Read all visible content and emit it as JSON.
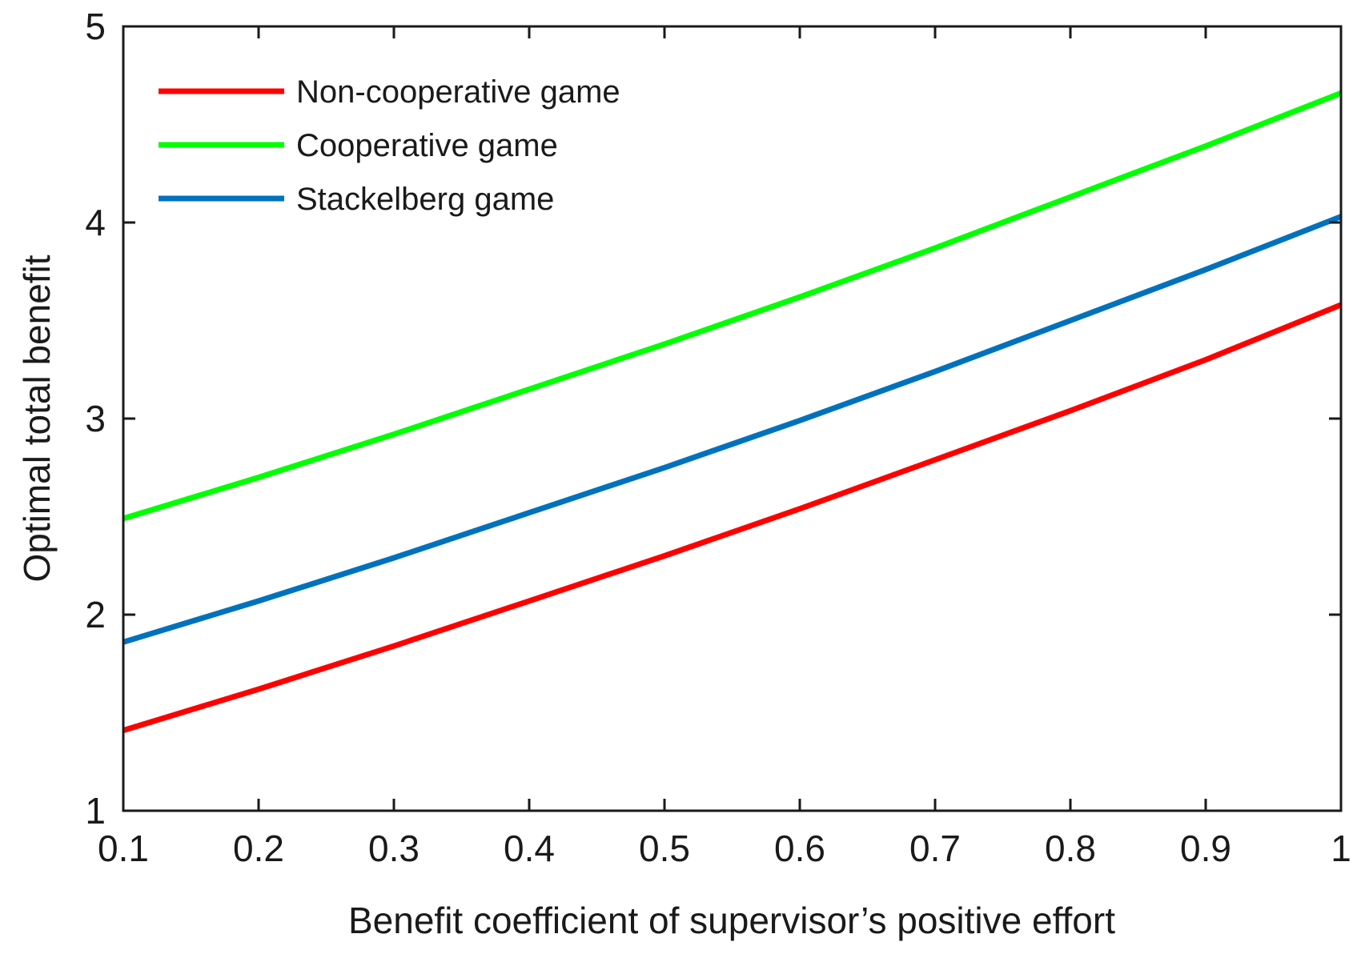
{
  "chart_data": {
    "type": "line",
    "title": "",
    "xlabel": "Benefit coefficient of supervisor’s positive effort",
    "ylabel": "Optimal total benefit",
    "xlim": [
      0.1,
      1
    ],
    "ylim": [
      1,
      5
    ],
    "xticks": [
      0.1,
      0.2,
      0.3,
      0.4,
      0.5,
      0.6,
      0.7,
      0.8,
      0.9,
      1
    ],
    "xtick_labels": [
      "0.1",
      "0.2",
      "0.3",
      "0.4",
      "0.5",
      "0.6",
      "0.7",
      "0.8",
      "0.9",
      "1"
    ],
    "yticks": [
      1,
      2,
      3,
      4,
      5
    ],
    "ytick_labels": [
      "1",
      "2",
      "3",
      "4",
      "5"
    ],
    "grid": false,
    "legend_position": "top-left",
    "x": [
      0.1,
      0.2,
      0.3,
      0.4,
      0.5,
      0.6,
      0.7,
      0.8,
      0.9,
      1.0
    ],
    "series": [
      {
        "name": "Non-cooperative game",
        "color": "#ff0000",
        "values": [
          1.41,
          1.62,
          1.84,
          2.07,
          2.3,
          2.54,
          2.79,
          3.04,
          3.3,
          3.58
        ]
      },
      {
        "name": "Cooperative game",
        "color": "#00ff00",
        "values": [
          2.49,
          2.7,
          2.92,
          3.15,
          3.38,
          3.62,
          3.87,
          4.13,
          4.39,
          4.66
        ]
      },
      {
        "name": "Stackelberg game",
        "color": "#0072bd",
        "values": [
          1.86,
          2.07,
          2.29,
          2.52,
          2.75,
          2.99,
          3.24,
          3.5,
          3.76,
          4.03
        ]
      }
    ]
  }
}
